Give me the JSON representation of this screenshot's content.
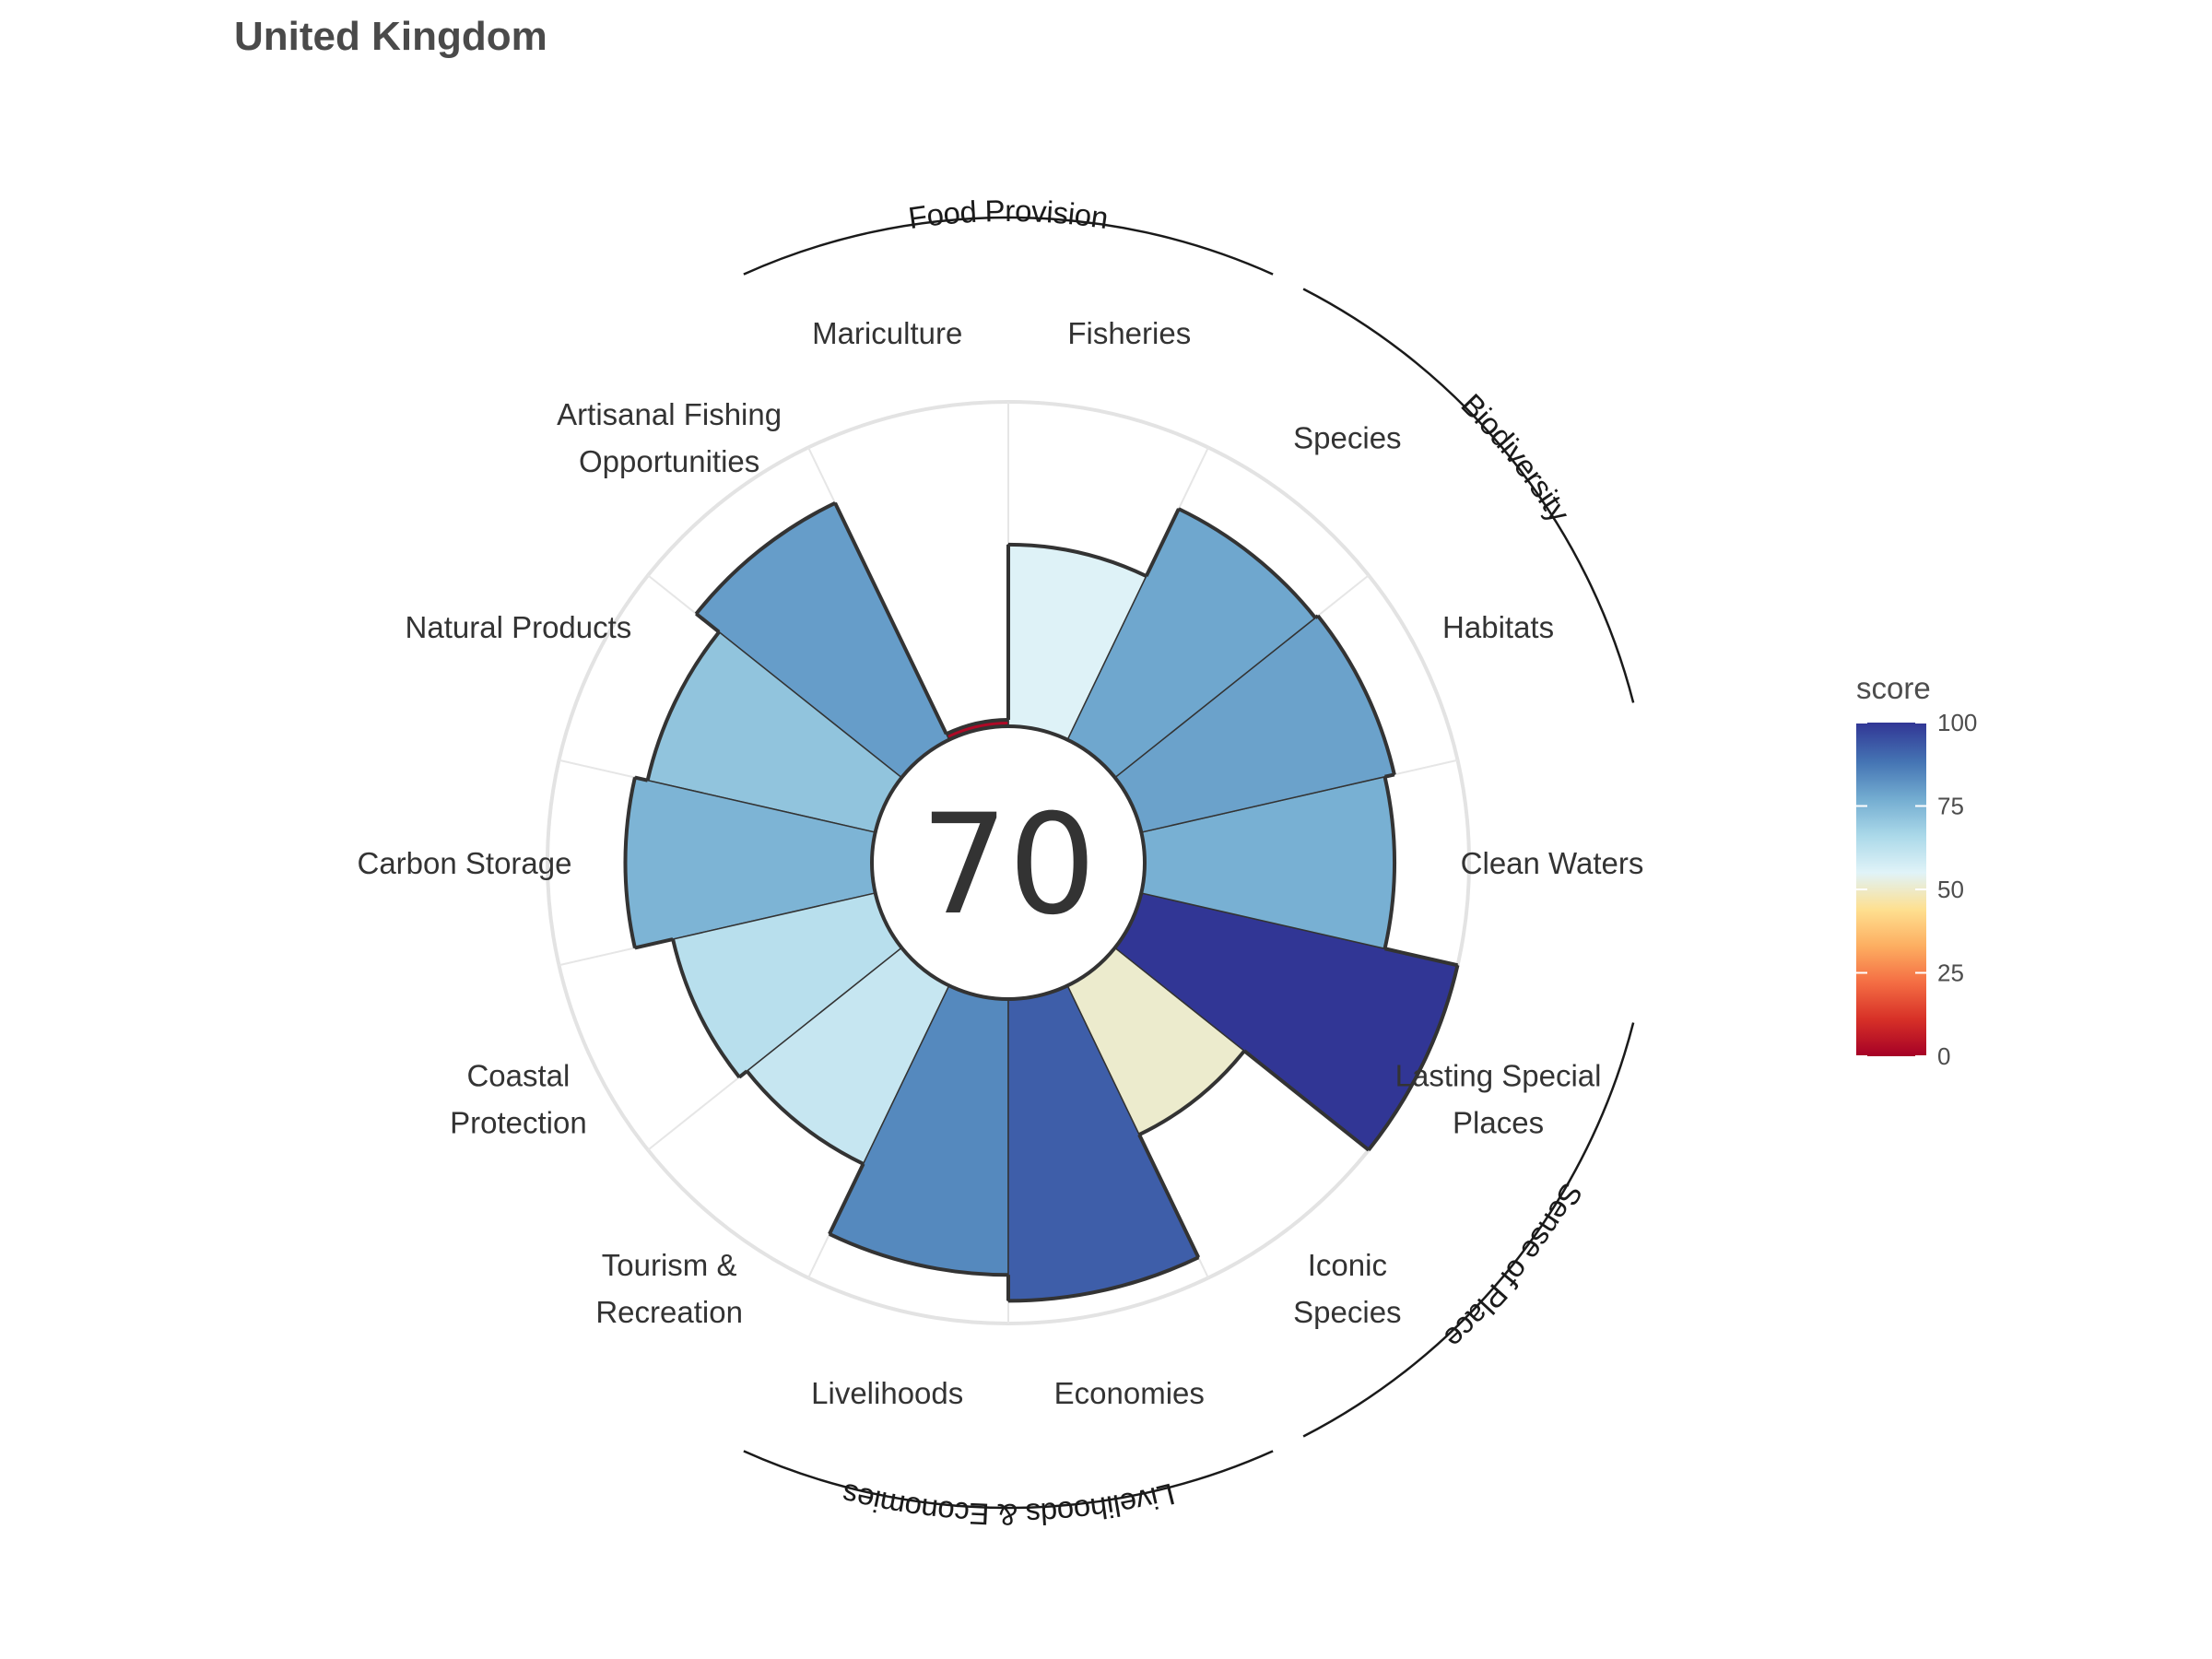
{
  "title": "United Kingdom",
  "overall_score": "70",
  "legend": {
    "title": "score",
    "ticks": [
      "0",
      "25",
      "50",
      "75",
      "100"
    ]
  },
  "chart_data": {
    "type": "polar-bar",
    "title": "United Kingdom",
    "center_value": 70,
    "value_range": [
      0,
      100
    ],
    "goals": [
      {
        "name": "Fisheries",
        "score": 56,
        "group": "Food Provision",
        "label_lines": [
          "Fisheries"
        ]
      },
      {
        "name": "Mariculture",
        "score": 2,
        "group": "Food Provision",
        "label_lines": [
          "Mariculture"
        ]
      },
      {
        "name": "Artisanal Fishing Opportunities",
        "score": 81,
        "group": "",
        "label_lines": [
          "Artisanal Fishing",
          "Opportunities"
        ]
      },
      {
        "name": "Natural Products",
        "score": 72,
        "group": "",
        "label_lines": [
          "Natural Products"
        ]
      },
      {
        "name": "Carbon Storage",
        "score": 76,
        "group": "",
        "label_lines": [
          "Carbon Storage"
        ]
      },
      {
        "name": "Coastal Protection",
        "score": 64,
        "group": "",
        "label_lines": [
          "Coastal",
          "Protection"
        ]
      },
      {
        "name": "Tourism & Recreation",
        "score": 61,
        "group": "",
        "label_lines": [
          "Tourism &",
          "Recreation"
        ]
      },
      {
        "name": "Livelihoods",
        "score": 85,
        "group": "Livelihoods & Economies",
        "label_lines": [
          "Livelihoods"
        ]
      },
      {
        "name": "Economies",
        "score": 93,
        "group": "Livelihoods & Economies",
        "label_lines": [
          "Economies"
        ]
      },
      {
        "name": "Iconic Species",
        "score": 51,
        "group": "Sense of Place",
        "label_lines": [
          "Iconic",
          "Species"
        ]
      },
      {
        "name": "Lasting Special Places",
        "score": 100,
        "group": "Sense of Place",
        "label_lines": [
          "Lasting Special",
          "Places"
        ]
      },
      {
        "name": "Clean Waters",
        "score": 77,
        "group": "",
        "label_lines": [
          "Clean Waters"
        ]
      },
      {
        "name": "Habitats",
        "score": 80,
        "group": "Biodiversity",
        "label_lines": [
          "Habitats"
        ]
      },
      {
        "name": "Species",
        "score": 79,
        "group": "Biodiversity",
        "label_lines": [
          "Species"
        ]
      }
    ],
    "groups": [
      "Food Provision",
      "Biodiversity",
      "Sense of Place",
      "Livelihoods & Economies"
    ],
    "color_scale": [
      "#a50026",
      "#d73027",
      "#f46d43",
      "#fdae61",
      "#fee090",
      "#e0f3f8",
      "#abd9e9",
      "#74add1",
      "#4575b4",
      "#313695"
    ],
    "legend_position": "right",
    "grid": true
  }
}
